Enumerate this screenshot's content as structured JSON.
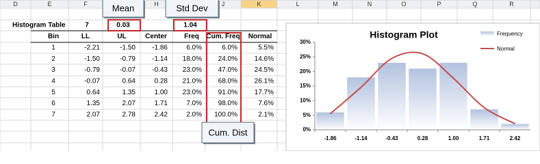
{
  "column_headers": [
    "D",
    "E",
    "F",
    "H",
    "J",
    "K",
    "L",
    "M",
    "N",
    "O",
    "P",
    "Q",
    "R"
  ],
  "callouts": {
    "mean": "Mean",
    "std_dev": "Std Dev",
    "cum_dist": "Cum. Dist"
  },
  "table": {
    "title": "Histogram Table",
    "bin_count": "7",
    "mean": "0.03",
    "std_dev": "1.04",
    "headers": [
      "Bin",
      "LL",
      "UL",
      "Center",
      "Freq",
      "Cum. Freq",
      "Normal"
    ],
    "rows": [
      [
        "1",
        "-2.21",
        "-1.50",
        "-1.86",
        "6.0%",
        "6.0%",
        "5.5%"
      ],
      [
        "2",
        "-1.50",
        "-0.79",
        "-1.14",
        "18.0%",
        "24.0%",
        "14.6%"
      ],
      [
        "3",
        "-0.79",
        "-0.07",
        "-0.43",
        "23.0%",
        "47.0%",
        "24.5%"
      ],
      [
        "4",
        "-0.07",
        "0.64",
        "0.28",
        "21.0%",
        "68.0%",
        "26.1%"
      ],
      [
        "5",
        "0.64",
        "1.35",
        "1.00",
        "23.0%",
        "91.0%",
        "17.7%"
      ],
      [
        "6",
        "1.35",
        "2.07",
        "1.71",
        "7.0%",
        "98.0%",
        "7.6%"
      ],
      [
        "7",
        "2.07",
        "2.78",
        "2.42",
        "2.0%",
        "100.0%",
        "2.1%"
      ]
    ]
  },
  "chart_data": {
    "type": "bar",
    "title": "Histogram Plot",
    "categories": [
      "-1.86",
      "-1.14",
      "-0.43",
      "0.28",
      "1.00",
      "1.71",
      "2.42"
    ],
    "series": [
      {
        "name": "Frequency",
        "type": "bar",
        "color": "#b3c2df",
        "values": [
          6,
          18,
          23,
          21,
          23,
          7,
          2
        ]
      },
      {
        "name": "Normal",
        "type": "line",
        "color": "#c0504d",
        "values": [
          5.5,
          14.6,
          24.5,
          26.1,
          17.7,
          7.6,
          2.1
        ]
      }
    ],
    "ylim": [
      0,
      30
    ],
    "yticks": [
      {
        "value": 0,
        "label": "0%"
      },
      {
        "value": 5,
        "label": "5%"
      },
      {
        "value": 10,
        "label": "10%"
      },
      {
        "value": 15,
        "label": "15%"
      },
      {
        "value": 20,
        "label": "20%"
      },
      {
        "value": 25,
        "label": "25%"
      },
      {
        "value": 30,
        "label": "30%"
      }
    ],
    "grid": false,
    "legend": "top-right"
  }
}
